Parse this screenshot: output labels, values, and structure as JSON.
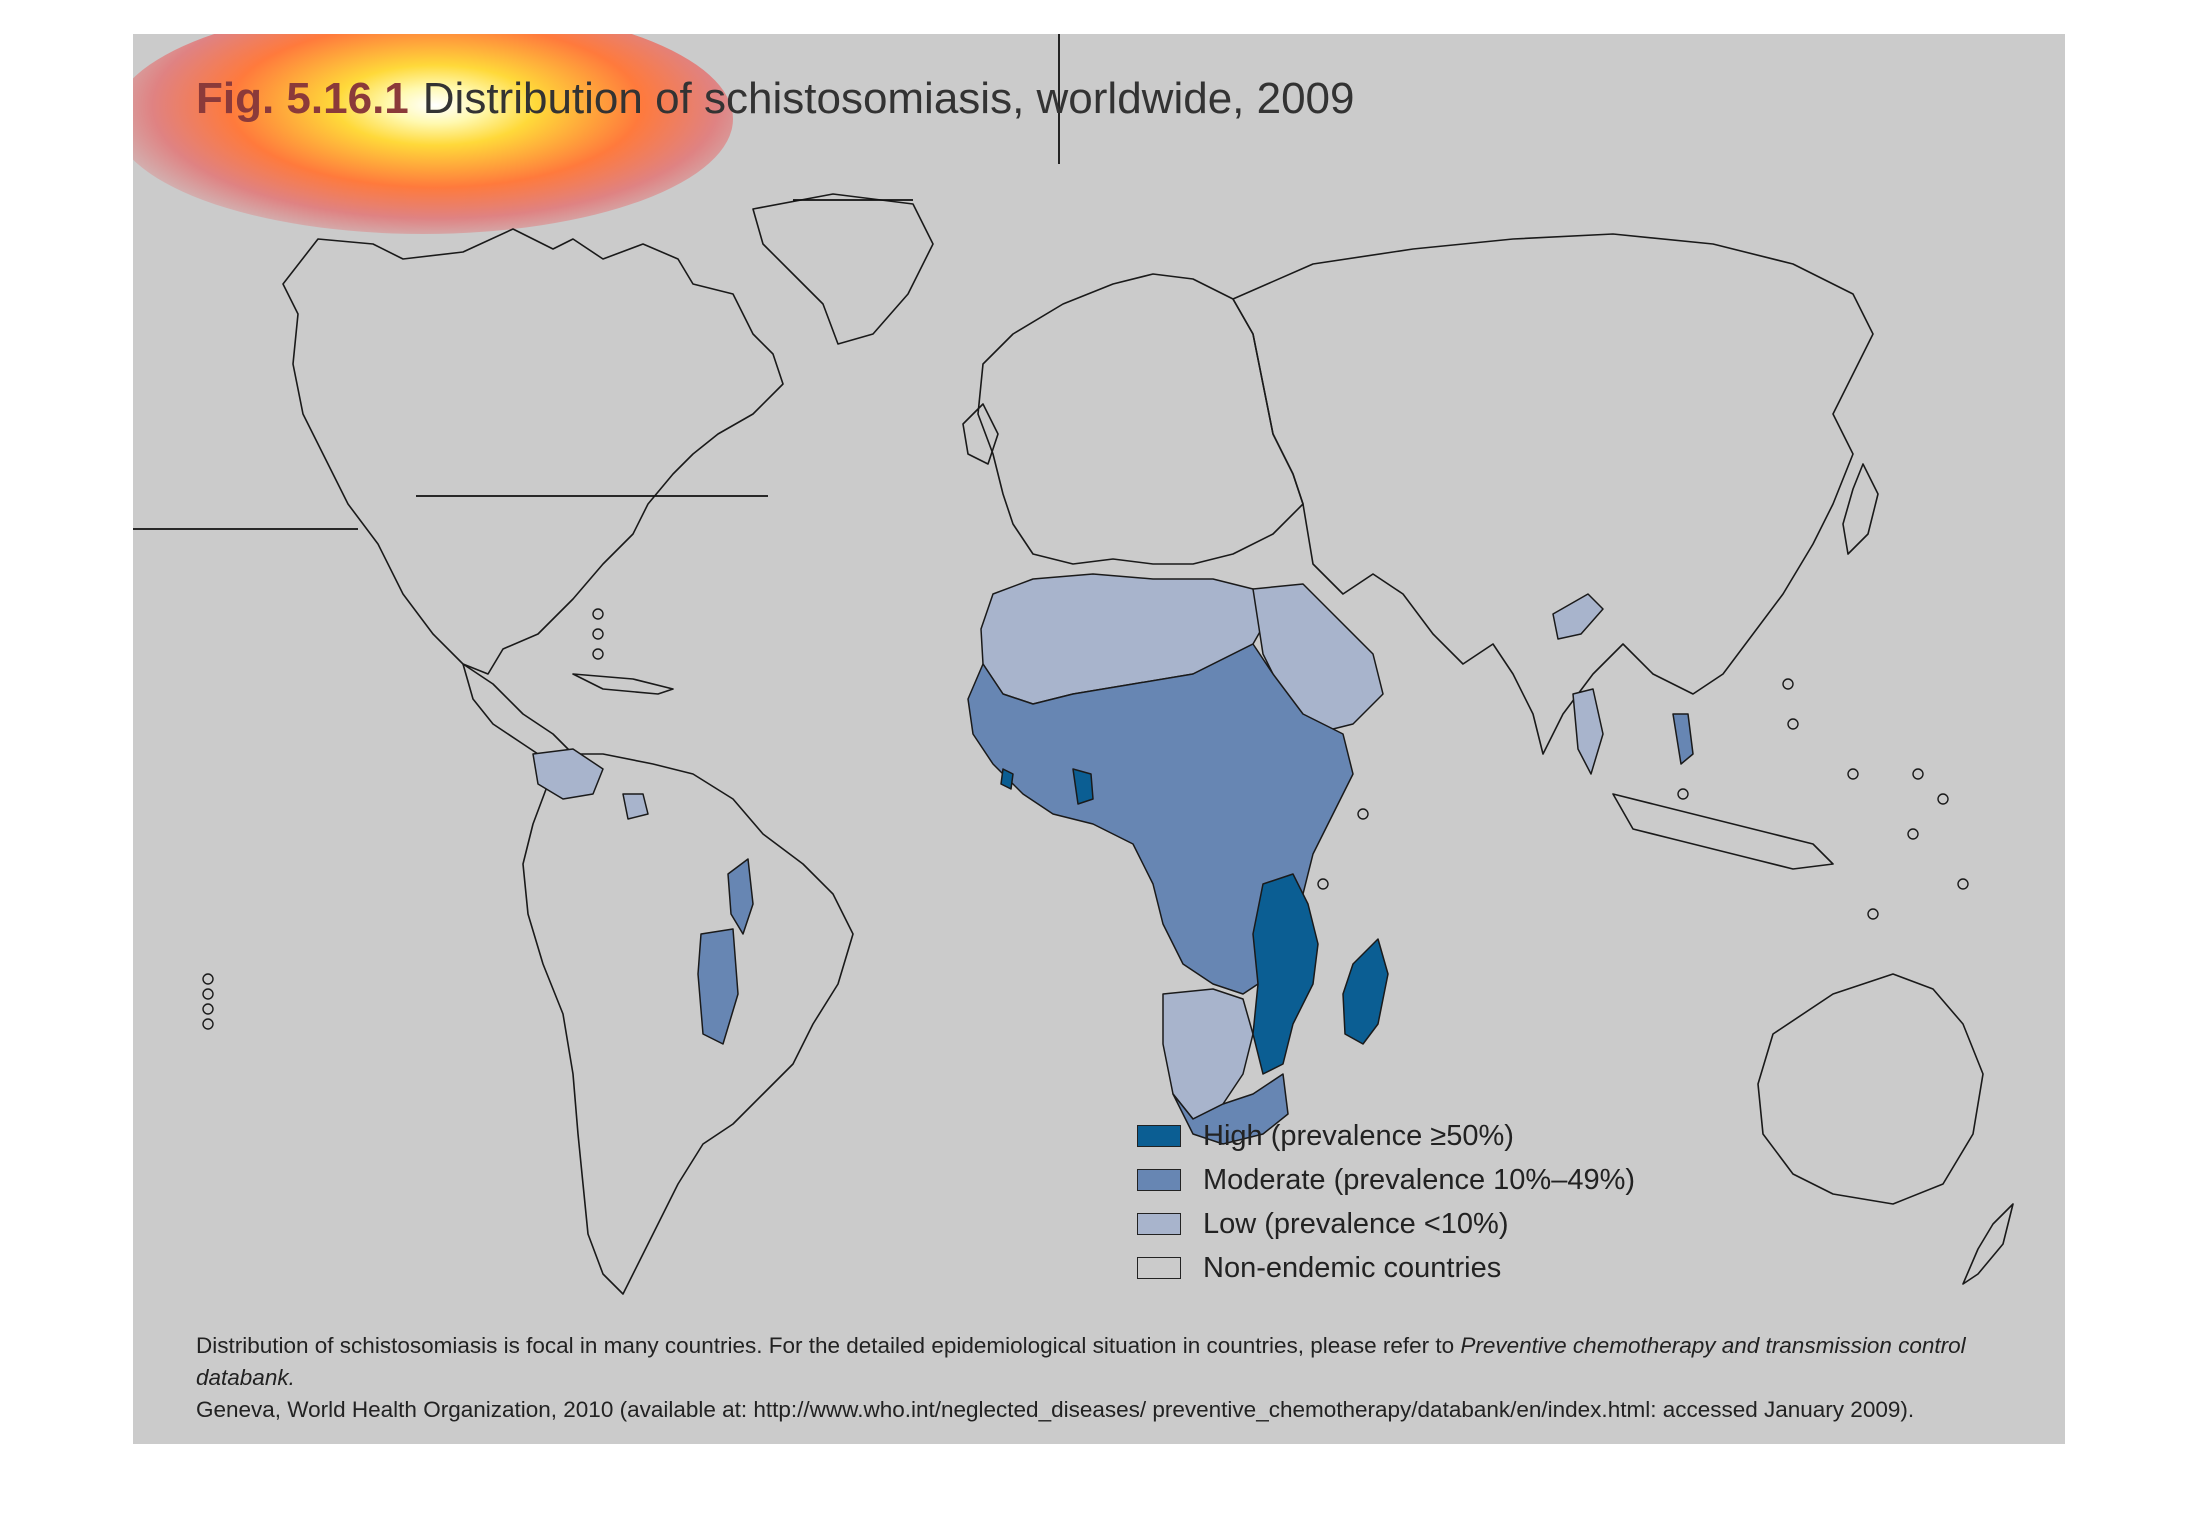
{
  "figure": {
    "number": "Fig. 5.16.1",
    "title": "Distribution of schistosomiasis, worldwide, 2009"
  },
  "legend": {
    "items": [
      {
        "label": "High (prevalence ≥50%)",
        "color": "#0b5e93"
      },
      {
        "label": "Moderate (prevalence 10%–49%)",
        "color": "#6786b3"
      },
      {
        "label": "Low (prevalence <10%)",
        "color": "#a8b4cc"
      },
      {
        "label": "Non-endemic countries",
        "color": "#cbcbcb"
      }
    ]
  },
  "footnote": {
    "line1_prefix": "Distribution of schistosomiasis is focal in many countries. For the detailed epidemiological situation in countries, please refer to ",
    "line1_italic": "Preventive chemotherapy and transmission control databank.",
    "line2": "Geneva, World Health Organization, 2010 (available at: http://www.who.int/neglected_diseases/ preventive_chemotherapy/databank/en/index.html: accessed January 2009)."
  },
  "colors": {
    "panel": "#cbcbcb",
    "outline": "#1a1a1a",
    "high": "#0b5e93",
    "moderate": "#6786b3",
    "low": "#a8b4cc"
  }
}
